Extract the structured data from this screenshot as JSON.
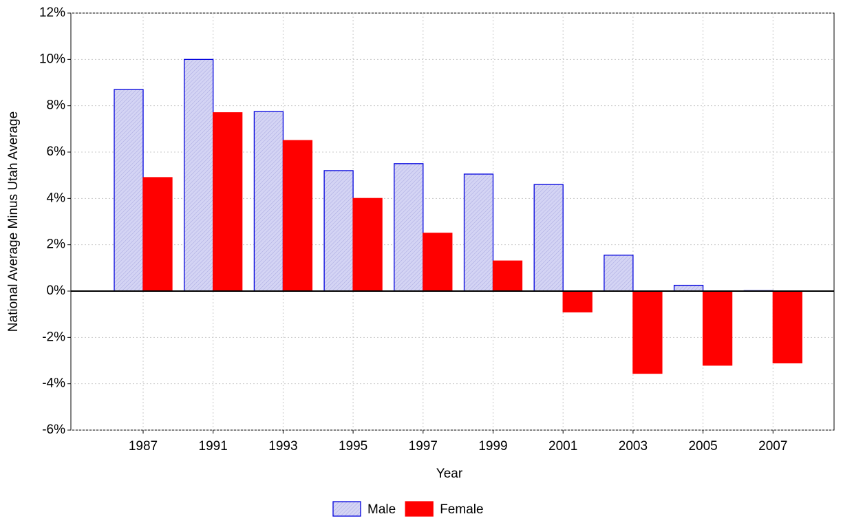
{
  "chart_data": {
    "type": "bar",
    "x_label": "Year",
    "y_label": "National Average Minus Utah Average",
    "categories": [
      "1987",
      "1991",
      "1993",
      "1995",
      "1997",
      "1999",
      "2001",
      "2003",
      "2005",
      "2007"
    ],
    "series": [
      {
        "name": "Male",
        "color": "#d4d4f4",
        "values": [
          8.7,
          10.0,
          7.75,
          5.2,
          5.5,
          5.05,
          4.6,
          1.55,
          0.25,
          0.02
        ]
      },
      {
        "name": "Female",
        "color": "#ff0000",
        "values": [
          4.9,
          7.7,
          6.5,
          4.0,
          2.5,
          1.3,
          -0.9,
          -3.55,
          -3.2,
          -3.1
        ]
      }
    ],
    "ylim": [
      -6,
      12
    ],
    "yticks": [
      {
        "value": -6,
        "label": "-6%"
      },
      {
        "value": -4,
        "label": "-4%"
      },
      {
        "value": -2,
        "label": "-2%"
      },
      {
        "value": 0,
        "label": "0%"
      },
      {
        "value": 2,
        "label": "2%"
      },
      {
        "value": 4,
        "label": "4%"
      },
      {
        "value": 6,
        "label": "6%"
      },
      {
        "value": 8,
        "label": "8%"
      },
      {
        "value": 10,
        "label": "10%"
      },
      {
        "value": 12,
        "label": "12%"
      }
    ],
    "grid": true,
    "legend": "bottom"
  }
}
